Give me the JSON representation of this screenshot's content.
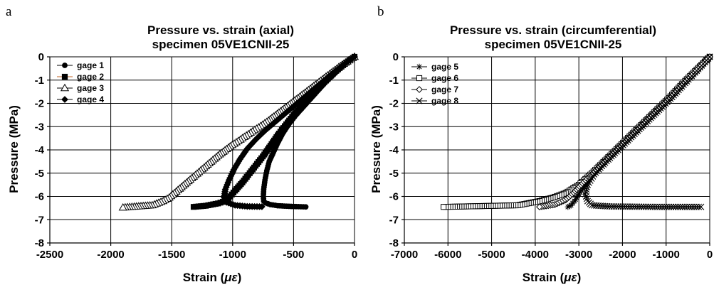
{
  "chart_data": [
    {
      "panel": "a",
      "type": "line",
      "title": [
        "Pressure vs. strain (axial)",
        "specimen 05VE1CNII-25"
      ],
      "xlabel": "Strain (",
      "xunit": "με",
      "xlabel_close": ")",
      "ylabel": "Pressure (MPa)",
      "xlim": [
        -2500,
        0
      ],
      "ylim": [
        -8,
        0
      ],
      "xticks": [
        -2500,
        -2000,
        -1500,
        -1000,
        -500,
        0
      ],
      "yticks": [
        0,
        -1,
        -2,
        -3,
        -4,
        -5,
        -6,
        -7,
        -8
      ],
      "grid": true,
      "legend_position": "top-left",
      "series": [
        {
          "name": "gage 1",
          "marker": "circle",
          "fill": "#000000",
          "line": "#000000",
          "points": [
            [
              0,
              0
            ],
            [
              -30,
              -0.1
            ],
            [
              -60,
              -0.2
            ],
            [
              -120,
              -0.5
            ],
            [
              -180,
              -0.8
            ],
            [
              -240,
              -1.1
            ],
            [
              -300,
              -1.45
            ],
            [
              -360,
              -1.8
            ],
            [
              -420,
              -2.15
            ],
            [
              -480,
              -2.5
            ],
            [
              -540,
              -2.9
            ],
            [
              -590,
              -3.3
            ],
            [
              -630,
              -3.7
            ],
            [
              -665,
              -4.1
            ],
            [
              -700,
              -4.5
            ],
            [
              -720,
              -4.9
            ],
            [
              -735,
              -5.3
            ],
            [
              -745,
              -5.7
            ],
            [
              -748,
              -6.0
            ],
            [
              -745,
              -6.2
            ],
            [
              -730,
              -6.28
            ],
            [
              -690,
              -6.35
            ],
            [
              -630,
              -6.4
            ],
            [
              -520,
              -6.43
            ],
            [
              -400,
              -6.45
            ]
          ]
        },
        {
          "name": "gage 2",
          "marker": "square",
          "fill": "#000000",
          "line": "#c06020",
          "points": [
            [
              0,
              0
            ],
            [
              -40,
              -0.15
            ],
            [
              -80,
              -0.3
            ],
            [
              -150,
              -0.6
            ],
            [
              -220,
              -0.95
            ],
            [
              -290,
              -1.3
            ],
            [
              -360,
              -1.7
            ],
            [
              -430,
              -2.1
            ],
            [
              -500,
              -2.5
            ],
            [
              -560,
              -2.9
            ],
            [
              -620,
              -3.3
            ],
            [
              -680,
              -3.75
            ],
            [
              -740,
              -4.2
            ],
            [
              -800,
              -4.6
            ],
            [
              -860,
              -5.0
            ],
            [
              -920,
              -5.4
            ],
            [
              -980,
              -5.75
            ],
            [
              -1020,
              -6.0
            ],
            [
              -1060,
              -6.2
            ],
            [
              -1120,
              -6.3
            ],
            [
              -1220,
              -6.4
            ],
            [
              -1320,
              -6.45
            ]
          ]
        },
        {
          "name": "gage 3",
          "marker": "triangle",
          "fill": "#ffffff",
          "line": "#000000",
          "points": [
            [
              0,
              0
            ],
            [
              -60,
              -0.2
            ],
            [
              -130,
              -0.45
            ],
            [
              -220,
              -0.8
            ],
            [
              -320,
              -1.2
            ],
            [
              -420,
              -1.6
            ],
            [
              -520,
              -2.0
            ],
            [
              -620,
              -2.4
            ],
            [
              -720,
              -2.8
            ],
            [
              -820,
              -3.15
            ],
            [
              -920,
              -3.5
            ],
            [
              -1020,
              -3.85
            ],
            [
              -1120,
              -4.25
            ],
            [
              -1220,
              -4.7
            ],
            [
              -1320,
              -5.15
            ],
            [
              -1420,
              -5.6
            ],
            [
              -1520,
              -6.05
            ],
            [
              -1570,
              -6.2
            ],
            [
              -1660,
              -6.38
            ],
            [
              -1900,
              -6.48
            ]
          ]
        },
        {
          "name": "gage 4",
          "marker": "diamond",
          "fill": "#000000",
          "line": "#000000",
          "points": [
            [
              0,
              0
            ],
            [
              -50,
              -0.18
            ],
            [
              -110,
              -0.42
            ],
            [
              -190,
              -0.75
            ],
            [
              -280,
              -1.15
            ],
            [
              -370,
              -1.55
            ],
            [
              -460,
              -1.95
            ],
            [
              -550,
              -2.35
            ],
            [
              -640,
              -2.75
            ],
            [
              -730,
              -3.15
            ],
            [
              -810,
              -3.55
            ],
            [
              -880,
              -3.95
            ],
            [
              -940,
              -4.4
            ],
            [
              -990,
              -4.85
            ],
            [
              -1030,
              -5.3
            ],
            [
              -1060,
              -5.7
            ],
            [
              -1070,
              -6.05
            ],
            [
              -1050,
              -6.25
            ],
            [
              -980,
              -6.38
            ],
            [
              -880,
              -6.43
            ],
            [
              -760,
              -6.44
            ]
          ]
        }
      ]
    },
    {
      "panel": "b",
      "type": "line",
      "title": [
        "Pressure vs. strain (circumferential)",
        "specimen 05VE1CNII-25"
      ],
      "xlabel": "Strain (",
      "xunit": "με",
      "xlabel_close": ")",
      "ylabel": "Pressure (MPa)",
      "xlim": [
        -7000,
        0
      ],
      "ylim": [
        -8,
        0
      ],
      "xticks": [
        -7000,
        -6000,
        -5000,
        -4000,
        -3000,
        -2000,
        -1000,
        0
      ],
      "yticks": [
        0,
        -1,
        -2,
        -3,
        -4,
        -5,
        -6,
        -7,
        -8
      ],
      "grid": true,
      "legend_position": "top-left",
      "series": [
        {
          "name": "gage 5",
          "marker": "star",
          "fill": "#000000",
          "line": "#000000",
          "points": [
            [
              0,
              0
            ],
            [
              -300,
              -0.6
            ],
            [
              -600,
              -1.2
            ],
            [
              -900,
              -1.8
            ],
            [
              -1200,
              -2.35
            ],
            [
              -1500,
              -2.9
            ],
            [
              -1800,
              -3.45
            ],
            [
              -2100,
              -4.0
            ],
            [
              -2400,
              -4.55
            ],
            [
              -2650,
              -5.05
            ],
            [
              -2850,
              -5.5
            ],
            [
              -3000,
              -5.9
            ],
            [
              -3100,
              -6.2
            ],
            [
              -3180,
              -6.38
            ],
            [
              -3250,
              -6.45
            ]
          ]
        },
        {
          "name": "gage 6",
          "marker": "square",
          "fill": "#ffffff",
          "line": "#000000",
          "points": [
            [
              0,
              0
            ],
            [
              -300,
              -0.55
            ],
            [
              -600,
              -1.1
            ],
            [
              -900,
              -1.7
            ],
            [
              -1200,
              -2.25
            ],
            [
              -1500,
              -2.8
            ],
            [
              -1800,
              -3.35
            ],
            [
              -2100,
              -3.9
            ],
            [
              -2400,
              -4.45
            ],
            [
              -2700,
              -5.0
            ],
            [
              -3000,
              -5.5
            ],
            [
              -3300,
              -5.85
            ],
            [
              -3600,
              -6.05
            ],
            [
              -3900,
              -6.2
            ],
            [
              -4400,
              -6.38
            ],
            [
              -6100,
              -6.45
            ]
          ]
        },
        {
          "name": "gage 7",
          "marker": "diamond",
          "fill": "#ffffff",
          "line": "#000000",
          "points": [
            [
              0,
              0
            ],
            [
              -300,
              -0.58
            ],
            [
              -600,
              -1.15
            ],
            [
              -900,
              -1.75
            ],
            [
              -1200,
              -2.3
            ],
            [
              -1500,
              -2.85
            ],
            [
              -1800,
              -3.4
            ],
            [
              -2100,
              -3.95
            ],
            [
              -2400,
              -4.5
            ],
            [
              -2700,
              -5.05
            ],
            [
              -2950,
              -5.5
            ],
            [
              -3150,
              -5.9
            ],
            [
              -3300,
              -6.15
            ],
            [
              -3550,
              -6.35
            ],
            [
              -3900,
              -6.45
            ]
          ]
        },
        {
          "name": "gage 8",
          "marker": "cross",
          "fill": "#000000",
          "line": "#000000",
          "points": [
            [
              0,
              0
            ],
            [
              -300,
              -0.6
            ],
            [
              -600,
              -1.2
            ],
            [
              -900,
              -1.8
            ],
            [
              -1200,
              -2.35
            ],
            [
              -1500,
              -2.9
            ],
            [
              -1800,
              -3.45
            ],
            [
              -2100,
              -4.0
            ],
            [
              -2400,
              -4.55
            ],
            [
              -2650,
              -5.05
            ],
            [
              -2800,
              -5.5
            ],
            [
              -2850,
              -5.9
            ],
            [
              -2800,
              -6.2
            ],
            [
              -2700,
              -6.38
            ],
            [
              -2300,
              -6.43
            ],
            [
              -1200,
              -6.45
            ],
            [
              -200,
              -6.45
            ]
          ]
        }
      ]
    }
  ]
}
